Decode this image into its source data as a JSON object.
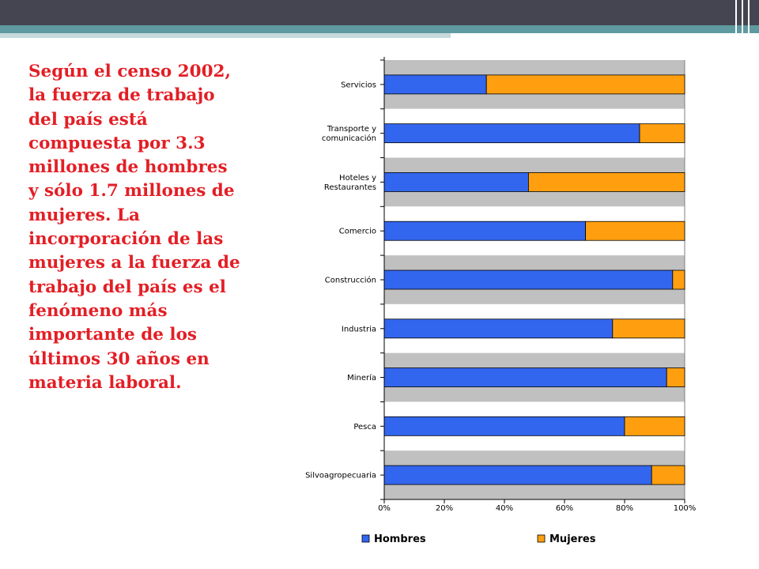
{
  "slide": {
    "body_text": "Según el censo 2002,\nla fuerza de trabajo\ndel país está\ncompuesta por 3.3\nmillones de hombres\ny sólo 1.7 millones de\nmujeres. La\nincorporación de las\nmujeres a la fuerza de\ntrabajo del país es el\nfenómeno más\nimportante de los\núltimos 30 años en\nmateria laboral.",
    "text_color": "#e31e25",
    "header_color": "#454552",
    "accent_color": "#5f9aa0"
  },
  "chart_data": {
    "type": "bar",
    "orientation": "horizontal",
    "stacked": true,
    "percent": true,
    "categories": [
      "Servicios",
      "Transporte y\ncomunicación",
      "Hoteles y\nRestaurantes",
      "Comercio",
      "Construcción",
      "Industria",
      "Minería",
      "Pesca",
      "Silvoagropecuaria"
    ],
    "series": [
      {
        "name": "Hombres",
        "color": "#3366ee",
        "values": [
          34,
          85,
          48,
          67,
          96,
          76,
          94,
          80,
          89
        ]
      },
      {
        "name": "Mujeres",
        "color": "#ff9f0f",
        "values": [
          66,
          15,
          52,
          33,
          4,
          24,
          6,
          20,
          11
        ]
      }
    ],
    "xlim": [
      0,
      100
    ],
    "x_ticks": [
      "0%",
      "20%",
      "40%",
      "60%",
      "80%",
      "100%"
    ],
    "plot_background": "#c0c0c0",
    "band_colors": [
      "#c0c0c0",
      "#ffffff"
    ],
    "legend_position": "bottom"
  }
}
